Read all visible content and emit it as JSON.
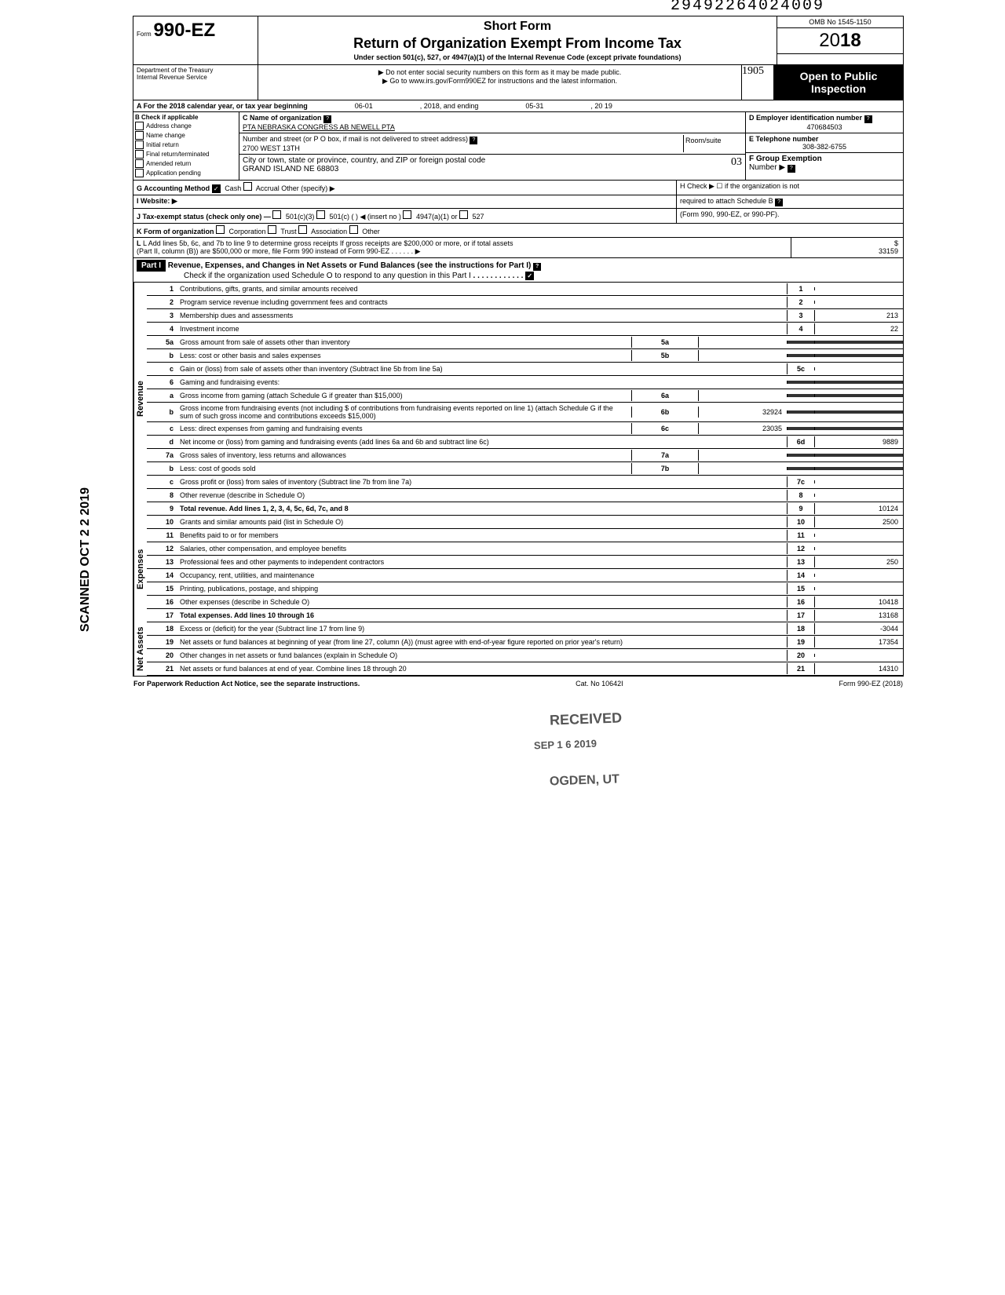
{
  "top_number": "29492264024009",
  "form": {
    "prefix": "Form",
    "number": "990-EZ",
    "dept1": "Department of the Treasury",
    "dept2": "Internal Revenue Service"
  },
  "titles": {
    "short": "Short Form",
    "main": "Return of Organization Exempt From Income Tax",
    "sub": "Under section 501(c), 527, or 4947(a)(1) of the Internal Revenue Code (except private foundations)",
    "warn": "▶ Do not enter social security numbers on this form as it may be made public.",
    "goto": "▶ Go to www.irs.gov/Form990EZ for instructions and the latest information."
  },
  "right": {
    "omb": "OMB No 1545-1150",
    "year": "2018",
    "open1": "Open to Public",
    "open2": "Inspection",
    "hand": "1905"
  },
  "rowA": {
    "label": "A For the 2018 calendar year, or tax year beginning",
    "start": "06-01",
    "mid": ", 2018, and ending",
    "end": "05-31",
    "yr": ", 20   19"
  },
  "sectionB": {
    "header": "B Check if applicable",
    "items": [
      "Address change",
      "Name change",
      "Initial return",
      "Final return/terminated",
      "Amended return",
      "Application pending"
    ],
    "c_label": "C Name of organization",
    "c_val": "PTA NEBRASKA CONGRESS AB NEWELL PTA",
    "addr_label": "Number and street (or P O box, if mail is not delivered to street address)",
    "addr_val": "2700 WEST 13TH",
    "room": "Room/suite",
    "city_label": "City or town, state or province, country, and ZIP or foreign postal code",
    "city_val": "GRAND ISLAND NE 68803",
    "hand03": "03",
    "d_label": "D Employer identification number",
    "d_val": "470684503",
    "e_label": "E Telephone number",
    "e_val": "308-382-6755",
    "f_label": "F Group Exemption",
    "f_num": "Number ▶"
  },
  "rowG": {
    "g": "G Accounting Method",
    "cash": "Cash",
    "accrual": "Accrual",
    "other": "Other (specify) ▶",
    "h": "H Check ▶ ☐ if the organization is not",
    "h2": "required to attach Schedule B",
    "h3": "(Form 990, 990-EZ, or 990-PF).",
    "i": "I Website: ▶",
    "j": "J Tax-exempt status (check only one) —",
    "j1": "501(c)(3)",
    "j2": "501(c) (",
    "j3": ") ◀ (insert no )",
    "j4": "4947(a)(1) or",
    "j5": "527",
    "k": "K Form of organization",
    "k1": "Corporation",
    "k2": "Trust",
    "k3": "Association",
    "k4": "Other",
    "l": "L Add lines 5b, 6c, and 7b to line 9 to determine gross receipts  If gross receipts are $200,000 or more, or if total assets",
    "l2": "(Part II, column (B)) are $500,000 or more, file Form 990 instead of Form 990-EZ",
    "l_val": "33159"
  },
  "part1": {
    "label": "Part I",
    "title": "Revenue, Expenses, and Changes in Net Assets or Fund Balances (see the instructions for Part I)",
    "check": "Check if the organization used Schedule O to respond to any question in this Part I"
  },
  "sections": {
    "revenue": "Revenue",
    "expenses": "Expenses",
    "netassets": "Net Assets"
  },
  "lines": [
    {
      "n": "1",
      "t": "Contributions, gifts, grants, and similar amounts received",
      "b": "1",
      "v": ""
    },
    {
      "n": "2",
      "t": "Program service revenue including government fees and contracts",
      "b": "2",
      "v": ""
    },
    {
      "n": "3",
      "t": "Membership dues and assessments",
      "b": "3",
      "v": "213"
    },
    {
      "n": "4",
      "t": "Investment income",
      "b": "4",
      "v": "22"
    },
    {
      "n": "5a",
      "t": "Gross amount from sale of assets other than inventory",
      "ib": "5a",
      "iv": ""
    },
    {
      "n": "b",
      "t": "Less: cost or other basis and sales expenses",
      "ib": "5b",
      "iv": ""
    },
    {
      "n": "c",
      "t": "Gain or (loss) from sale of assets other than inventory (Subtract line 5b from line 5a)",
      "b": "5c",
      "v": ""
    },
    {
      "n": "6",
      "t": "Gaming and fundraising events:"
    },
    {
      "n": "a",
      "t": "Gross income from gaming (attach Schedule G if greater than $15,000)",
      "ib": "6a",
      "iv": ""
    },
    {
      "n": "b",
      "t": "Gross income from fundraising events (not including $                    of contributions from fundraising events reported on line 1) (attach Schedule G if the sum of such gross income and contributions exceeds $15,000)",
      "ib": "6b",
      "iv": "32924"
    },
    {
      "n": "c",
      "t": "Less: direct expenses from gaming and fundraising events",
      "ib": "6c",
      "iv": "23035"
    },
    {
      "n": "d",
      "t": "Net income or (loss) from gaming and fundraising events (add lines 6a and 6b and subtract line 6c)",
      "b": "6d",
      "v": "9889"
    },
    {
      "n": "7a",
      "t": "Gross sales of inventory, less returns and allowances",
      "ib": "7a",
      "iv": ""
    },
    {
      "n": "b",
      "t": "Less: cost of goods sold",
      "ib": "7b",
      "iv": ""
    },
    {
      "n": "c",
      "t": "Gross profit or (loss) from sales of inventory (Subtract line 7b from line 7a)",
      "b": "7c",
      "v": ""
    },
    {
      "n": "8",
      "t": "Other revenue (describe in Schedule O)",
      "b": "8",
      "v": ""
    },
    {
      "n": "9",
      "t": "Total revenue. Add lines 1, 2, 3, 4, 5c, 6d, 7c, and 8",
      "b": "9",
      "v": "10124",
      "bold": true
    }
  ],
  "expense_lines": [
    {
      "n": "10",
      "t": "Grants and similar amounts paid (list in Schedule O)",
      "b": "10",
      "v": "2500"
    },
    {
      "n": "11",
      "t": "Benefits paid to or for members",
      "b": "11",
      "v": ""
    },
    {
      "n": "12",
      "t": "Salaries, other compensation, and employee benefits",
      "b": "12",
      "v": ""
    },
    {
      "n": "13",
      "t": "Professional fees and other payments to independent contractors",
      "b": "13",
      "v": "250"
    },
    {
      "n": "14",
      "t": "Occupancy, rent, utilities, and maintenance",
      "b": "14",
      "v": ""
    },
    {
      "n": "15",
      "t": "Printing, publications, postage, and shipping",
      "b": "15",
      "v": ""
    },
    {
      "n": "16",
      "t": "Other expenses (describe in Schedule O)",
      "b": "16",
      "v": "10418"
    },
    {
      "n": "17",
      "t": "Total expenses. Add lines 10 through 16",
      "b": "17",
      "v": "13168",
      "bold": true
    }
  ],
  "na_lines": [
    {
      "n": "18",
      "t": "Excess or (deficit) for the year (Subtract line 17 from line 9)",
      "b": "18",
      "v": "-3044"
    },
    {
      "n": "19",
      "t": "Net assets or fund balances at beginning of year (from line 27, column (A)) (must agree with end-of-year figure reported on prior year's return)",
      "b": "19",
      "v": "17354"
    },
    {
      "n": "20",
      "t": "Other changes in net assets or fund balances (explain in Schedule O)",
      "b": "20",
      "v": ""
    },
    {
      "n": "21",
      "t": "Net assets or fund balances at end of year. Combine lines 18 through 20",
      "b": "21",
      "v": "14310"
    }
  ],
  "stamps": {
    "received": "RECEIVED",
    "date": "SEP 1 6 2019",
    "ogden": "OGDEN, UT",
    "scanned": "SCANNED OCT 2 2 2019"
  },
  "footer": {
    "left": "For Paperwork Reduction Act Notice, see the separate instructions.",
    "center": "Cat. No 10642I",
    "right": "Form 990-EZ (2018)"
  }
}
